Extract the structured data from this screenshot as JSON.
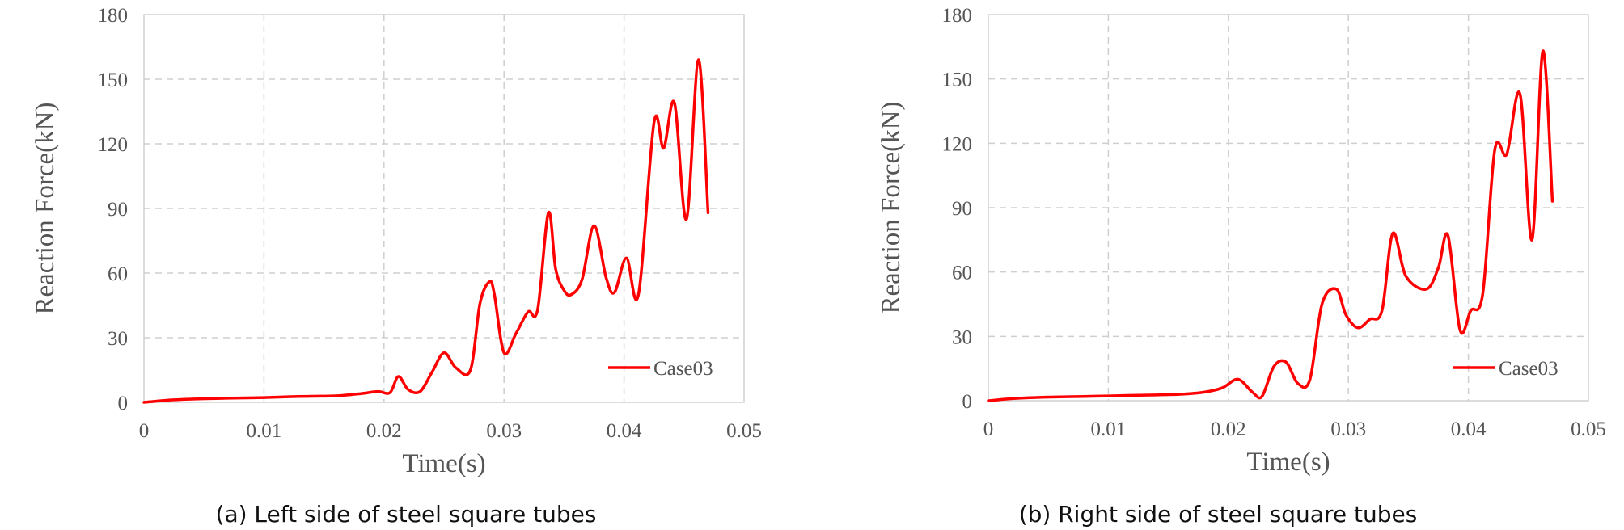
{
  "chart_data": [
    {
      "type": "line",
      "caption": "(a) Left side of steel square tubes",
      "xlabel": "Time(s)",
      "ylabel": "Reaction Force(kN)",
      "xlim": [
        0,
        0.05
      ],
      "ylim": [
        0,
        180
      ],
      "xticks": [
        "0",
        "0.01",
        "0.02",
        "0.03",
        "0.04",
        "0.05"
      ],
      "yticks": [
        "0",
        "30",
        "60",
        "90",
        "120",
        "150",
        "180"
      ],
      "grid": true,
      "legend_position": "bottom-right",
      "series": [
        {
          "name": "Case03",
          "color": "#ff0000",
          "x": [
            0,
            0.002,
            0.004,
            0.006,
            0.008,
            0.01,
            0.012,
            0.014,
            0.016,
            0.018,
            0.0195,
            0.0205,
            0.0212,
            0.022,
            0.023,
            0.024,
            0.025,
            0.026,
            0.0272,
            0.028,
            0.0288,
            0.0292,
            0.03,
            0.031,
            0.032,
            0.0328,
            0.0337,
            0.0343,
            0.035,
            0.0356,
            0.0365,
            0.0375,
            0.0385,
            0.0392,
            0.0402,
            0.0412,
            0.0425,
            0.0433,
            0.0442,
            0.0452,
            0.0462,
            0.047
          ],
          "y": [
            0,
            1,
            1.5,
            1.8,
            2,
            2.2,
            2.6,
            2.8,
            3,
            4,
            5,
            4.5,
            12,
            6,
            5,
            14,
            23,
            16,
            15,
            46,
            56,
            50,
            23,
            32,
            42,
            43,
            88,
            62,
            52,
            50,
            57,
            82,
            58,
            51,
            67,
            50,
            130,
            118,
            139,
            85,
            159,
            88
          ]
        }
      ]
    },
    {
      "type": "line",
      "caption": "(b) Right side of steel square tubes",
      "xlabel": "Time(s)",
      "ylabel": "Reaction Force(kN)",
      "xlim": [
        0,
        0.05
      ],
      "ylim": [
        0,
        180
      ],
      "xticks": [
        "0",
        "0.01",
        "0.02",
        "0.03",
        "0.04",
        "0.05"
      ],
      "yticks": [
        "0",
        "30",
        "60",
        "90",
        "120",
        "150",
        "180"
      ],
      "grid": true,
      "legend_position": "bottom-right",
      "series": [
        {
          "name": "Case03",
          "color": "#ff0000",
          "x": [
            0,
            0.002,
            0.004,
            0.006,
            0.008,
            0.01,
            0.012,
            0.014,
            0.016,
            0.018,
            0.0195,
            0.0208,
            0.022,
            0.0228,
            0.0238,
            0.0248,
            0.0258,
            0.0268,
            0.0278,
            0.029,
            0.0298,
            0.0308,
            0.0318,
            0.0328,
            0.0337,
            0.0348,
            0.0365,
            0.0375,
            0.0383,
            0.0393,
            0.0402,
            0.0412,
            0.0422,
            0.0432,
            0.0443,
            0.0453,
            0.0462,
            0.047
          ],
          "y": [
            0,
            1,
            1.5,
            1.8,
            2,
            2.2,
            2.5,
            2.7,
            3,
            4,
            6,
            10,
            4,
            2,
            16,
            18,
            8,
            10,
            45,
            52,
            40,
            34,
            38,
            42,
            78,
            58,
            52,
            62,
            77,
            33,
            42,
            50,
            117,
            115,
            143,
            75,
            163,
            93
          ]
        }
      ]
    }
  ]
}
